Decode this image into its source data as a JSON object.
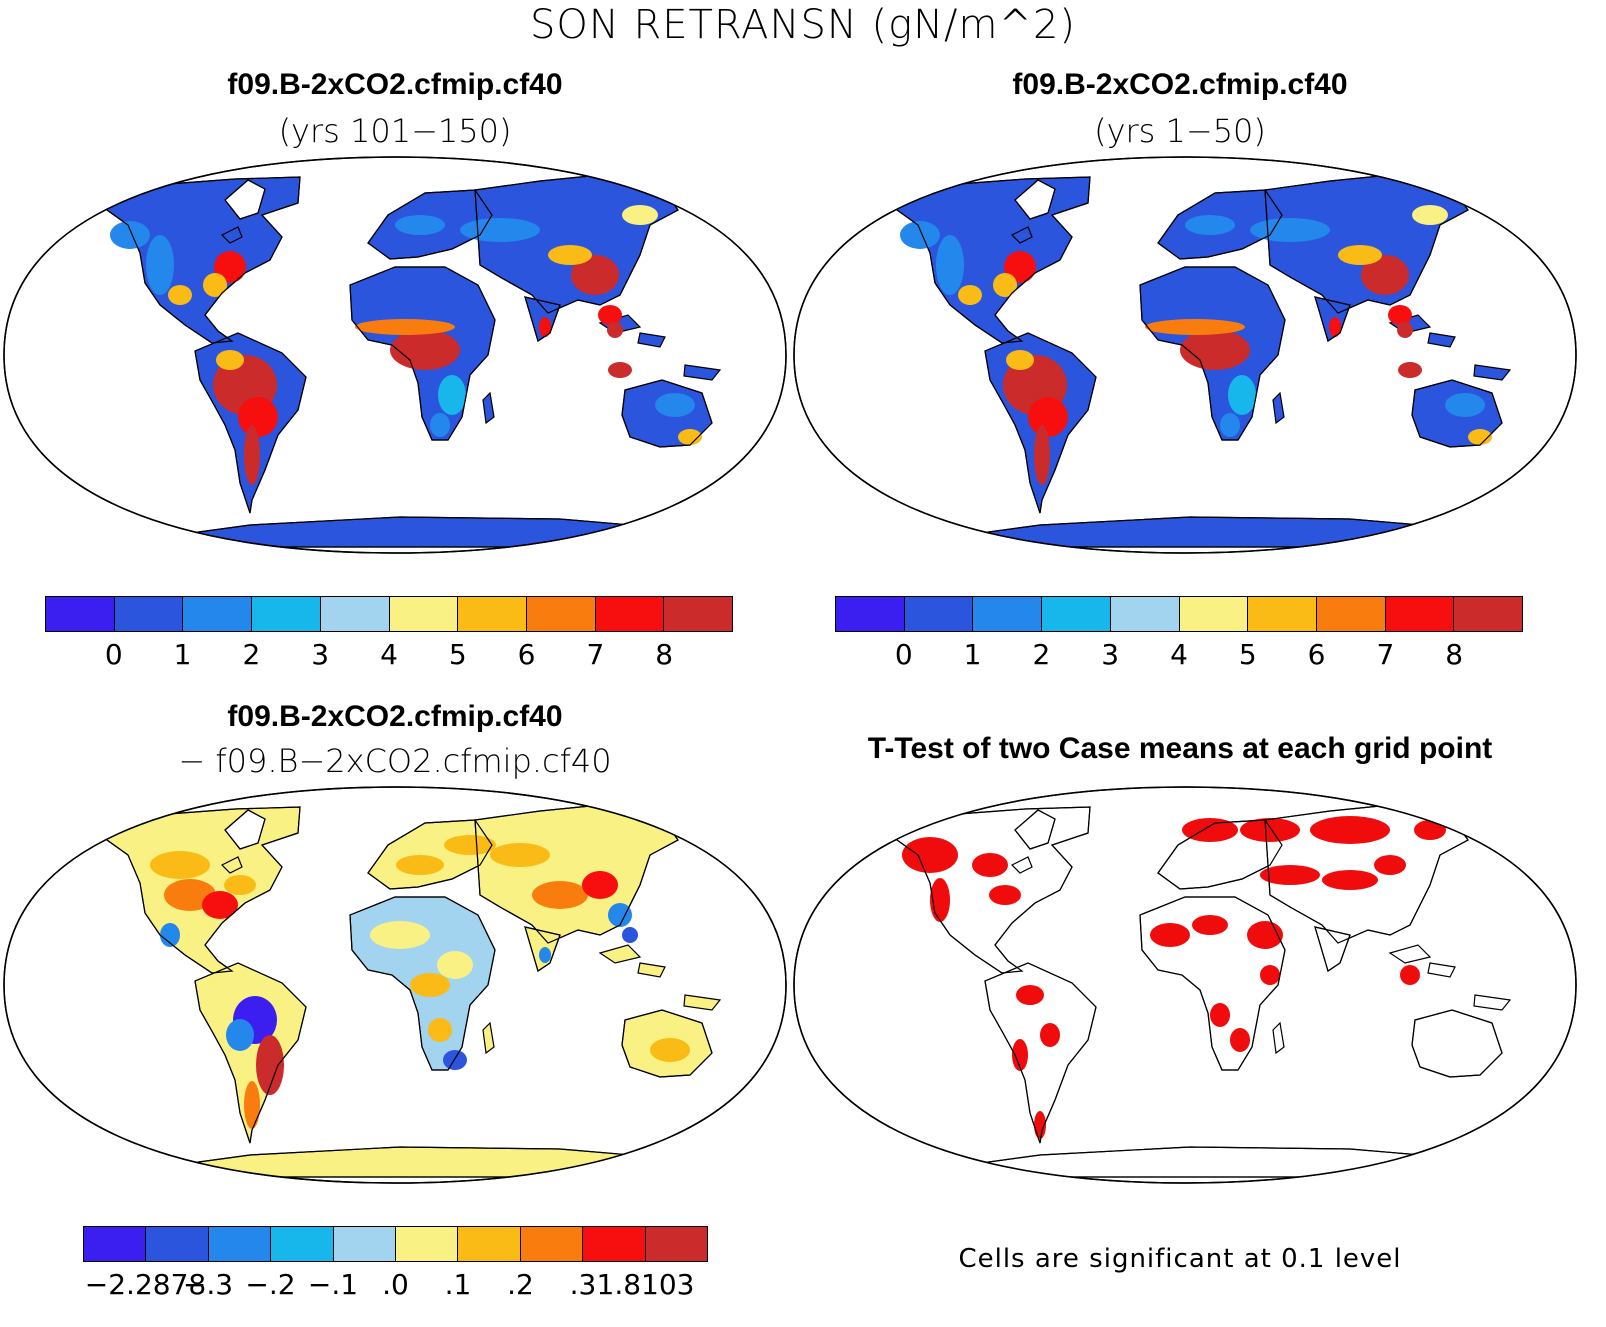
{
  "figure": {
    "title": "SON RETRANSN (gN/m^2)"
  },
  "colors": {
    "level_colors": [
      "#3b1ff0",
      "#2b55dc",
      "#2387ec",
      "#17b7ec",
      "#a2d3ef",
      "#f9f183",
      "#fbbb17",
      "#f97d0e",
      "#f70f0f",
      "#cc2b2b"
    ],
    "land_fill_low": "#2b55dc",
    "ttest_fill": "#f00c0c",
    "outline": "#000000"
  },
  "panels": {
    "top_left": {
      "case_name": "f09.B-2xCO2.cfmip.cf40",
      "subtitle": "(yrs 101−150)",
      "colorbar_labels": [
        "0",
        "1",
        "2",
        "3",
        "4",
        "5",
        "6",
        "7",
        "8"
      ]
    },
    "top_right": {
      "case_name": "f09.B-2xCO2.cfmip.cf40",
      "subtitle": "(yrs 1−50)",
      "colorbar_labels": [
        "0",
        "1",
        "2",
        "3",
        "4",
        "5",
        "6",
        "7",
        "8"
      ]
    },
    "bottom_left": {
      "case_name": "f09.B-2xCO2.cfmip.cf40",
      "subtitle": "− f09.B−2xCO2.cfmip.cf40",
      "colorbar_labels": [
        "−2.2878",
        "−.3",
        "−.2",
        "−.1",
        ".0",
        ".1",
        ".2",
        ".3",
        "1.8103"
      ]
    },
    "bottom_right": {
      "title": "T-Test of two Case means at each grid point",
      "note": "Cells are significant at 0.1 level"
    }
  }
}
